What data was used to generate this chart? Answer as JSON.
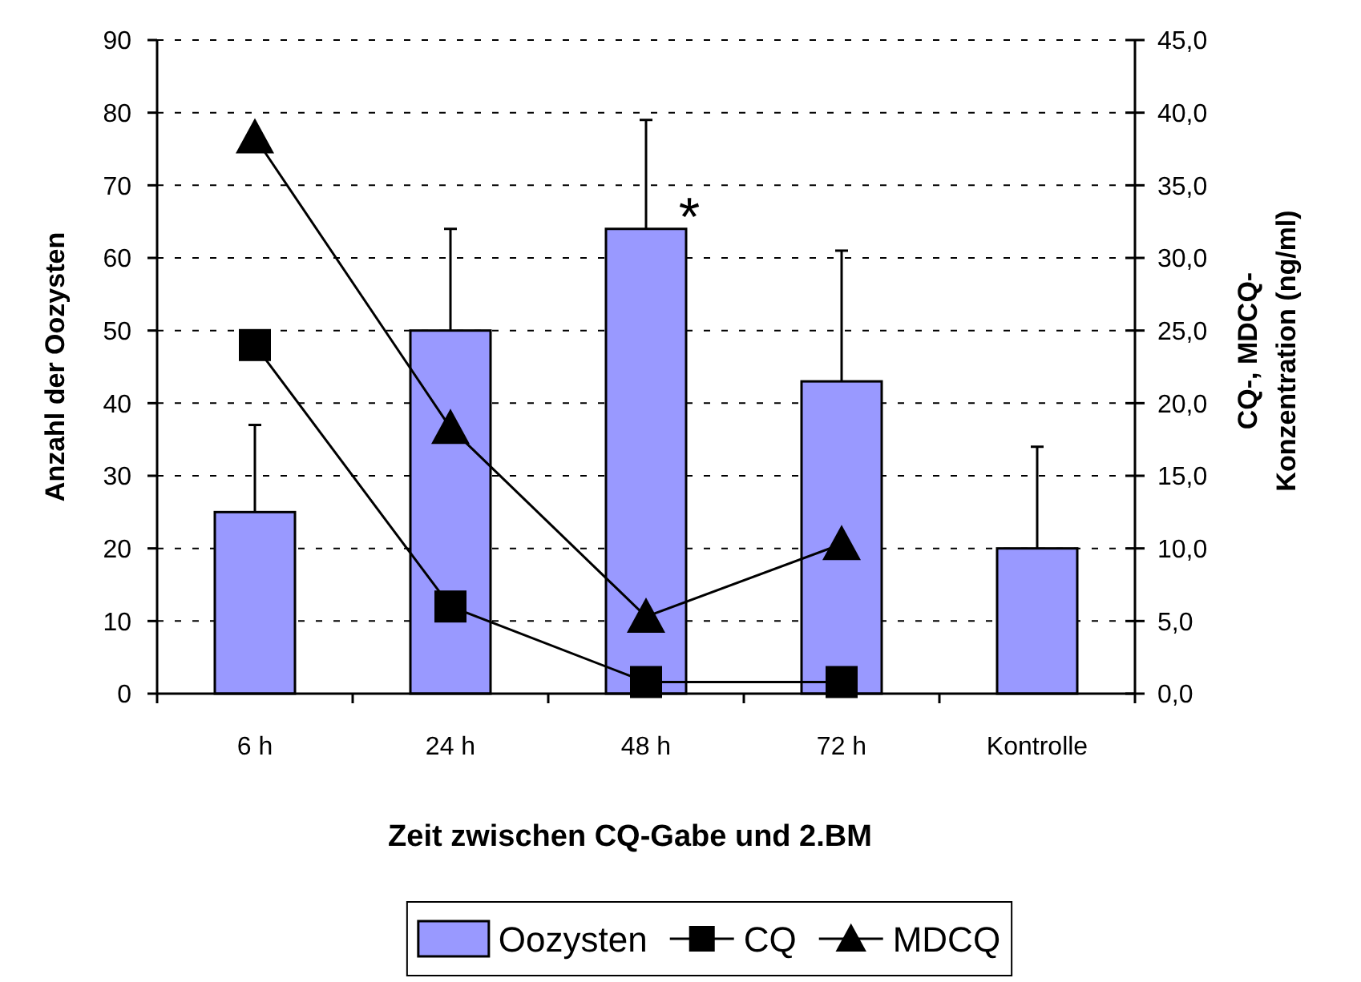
{
  "chart_data": {
    "type": "bar",
    "categories": [
      "6 h",
      "24 h",
      "48 h",
      "72 h",
      "Kontrolle"
    ],
    "xlabel": "Zeit zwischen CQ-Gabe und 2.BM",
    "ylabel": "Anzahl der Oozysten",
    "y2label": "CQ-, MDCQ-\nKonzentration (ng/ml)",
    "ylim": [
      0,
      90
    ],
    "yticks": [
      0,
      10,
      20,
      30,
      40,
      50,
      60,
      70,
      80,
      90
    ],
    "y2lim": [
      0,
      45
    ],
    "y2ticks": [
      {
        "value": 0,
        "label": "0,0"
      },
      {
        "value": 5,
        "label": "5,0"
      },
      {
        "value": 10,
        "label": "10,0"
      },
      {
        "value": 15,
        "label": "15,0"
      },
      {
        "value": 20,
        "label": "20,0"
      },
      {
        "value": 25,
        "label": "25,0"
      },
      {
        "value": 30,
        "label": "30,0"
      },
      {
        "value": 35,
        "label": "35,0"
      },
      {
        "value": 40,
        "label": "40,0"
      },
      {
        "value": 45,
        "label": "45,0"
      }
    ],
    "grid": "y",
    "legend": "bottom",
    "series": [
      {
        "name": "Oozysten",
        "color": "#9999ff",
        "values": [
          25,
          50,
          64,
          43,
          20
        ],
        "errors": [
          [
            25,
            37
          ],
          [
            50,
            64
          ],
          [
            64,
            79
          ],
          [
            43,
            61
          ],
          [
            20,
            34
          ]
        ]
      },
      {
        "name": "CQ",
        "type": "line",
        "axis": "y2",
        "color": "#000000",
        "marker": "square",
        "values": [
          24,
          6,
          0.8,
          0.8,
          null
        ]
      },
      {
        "name": "MDCQ",
        "type": "line",
        "axis": "y2",
        "color": "#000000",
        "marker": "triangle",
        "values": [
          38.3,
          18.3,
          5.3,
          10.3,
          null
        ]
      }
    ],
    "annotations": [
      {
        "text": "*",
        "x": "48 h",
        "y": 64
      }
    ]
  }
}
